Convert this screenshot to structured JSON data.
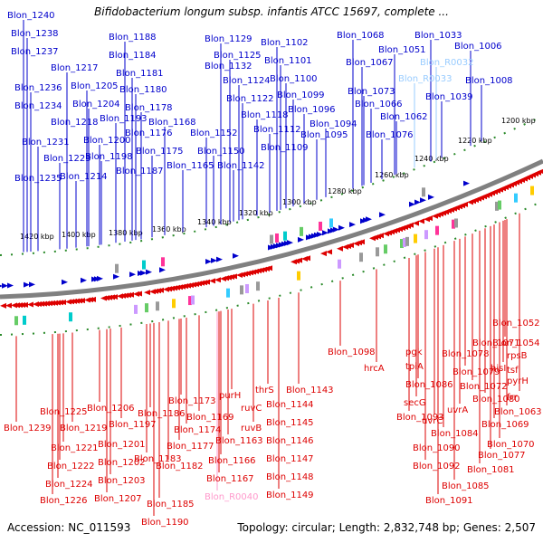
{
  "title": "Bifidobacterium longum subsp. infantis ATCC 15697, complete ...",
  "footer": {
    "accession": "Accession: NC_011593",
    "summary": "Topology: circular; Length: 2,832,748 bp; Genes: 2,507"
  },
  "colors": {
    "forward_strand": "#0000cc",
    "reverse_strand": "#dd0000",
    "rna": "#99ccff",
    "rna_reverse": "#ff99cc",
    "tick": "#2a8a2a",
    "backbone": "#808080"
  },
  "ruler_ticks": [
    "1200 kbp",
    "1220 kbp",
    "1240 kbp",
    "1260 kbp",
    "1280 kbp",
    "1300 kbp",
    "1320 kbp",
    "1340 kbp",
    "1360 kbp",
    "1380 kbp",
    "1400 kbp",
    "1420 kbp"
  ],
  "top_genes": [
    "Blon_1240",
    "Blon_1238",
    "Blon_1237",
    "Blon_1236",
    "Blon_1234",
    "Blon_1231",
    "Blon_1235",
    "Blon_1217",
    "Blon_1205",
    "Blon_1218",
    "Blon_1223",
    "Blon_1214",
    "Blon_1204",
    "Blon_1200",
    "Blon_1198",
    "Blon_1188",
    "Blon_1184",
    "Blon_1181",
    "Blon_1180",
    "Blon_1178",
    "Blon_1193",
    "Blon_1176",
    "Blon_1175",
    "Blon_1187",
    "Blon_1168",
    "Blon_1165",
    "Blon_1152",
    "Blon_1150",
    "Blon_1142",
    "Blon_1129",
    "Blon_1125",
    "Blon_1132",
    "Blon_1124",
    "Blon_1122",
    "Blon_1118",
    "Blon_1112",
    "Blon_1109",
    "Blon_1102",
    "Blon_1101",
    "Blon_1100",
    "Blon_1099",
    "Blon_1096",
    "Blon_1094",
    "Blon_1095",
    "Blon_1068",
    "Blon_1067",
    "Blon_1073",
    "Blon_1066",
    "Blon_1062",
    "Blon_1076",
    "Blon_1051",
    "Blon_1033",
    "Blon_R0032",
    "Blon_R0033",
    "Blon_1039",
    "Blon_1006",
    "Blon_1008"
  ],
  "bottom_genes": [
    "Blon_1239",
    "Blon_1225",
    "Blon_1219",
    "Blon_1221",
    "Blon_1222",
    "Blon_1224",
    "Blon_1226",
    "Blon_1206",
    "Blon_1197",
    "Blon_1201",
    "Blon_1202",
    "Blon_1203",
    "Blon_1207",
    "Blon_1186",
    "Blon_1183",
    "Blon_1182",
    "Blon_1185",
    "Blon_1190",
    "Blon_1173",
    "Blon_1169",
    "Blon_1174",
    "Blon_1177",
    "Blon_1166",
    "Blon_1167",
    "Blon_R0040",
    "purH",
    "ruvC",
    "ruvB",
    "Blon_1163",
    "thrS",
    "Blon_1144",
    "Blon_1145",
    "Blon_1146",
    "Blon_1147",
    "Blon_1148",
    "Blon_1149",
    "Blon_1143",
    "Blon_1098",
    "hrcA",
    "pgk",
    "tpiA",
    "Blon_1086",
    "secG",
    "Blon_1093",
    "uvrC",
    "uvrA",
    "Blon_1084",
    "Blon_1090",
    "Blon_1092",
    "Blon_1085",
    "Blon_1091",
    "Blon_1071",
    "Blon_1078",
    "Blon_1079",
    "Blon_1072",
    "Blon_1080",
    "Blon_1069",
    "Blon_1070",
    "Blon_1077",
    "Blon_1081",
    "Blon_1052",
    "Blon_1054",
    "rpsB",
    "tsf",
    "hisI",
    "pyrH",
    "frr",
    "Blon_1063"
  ]
}
